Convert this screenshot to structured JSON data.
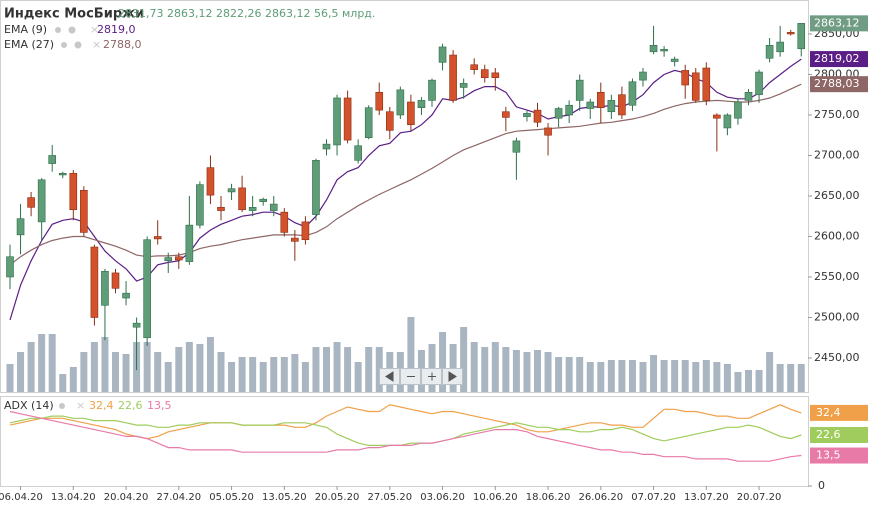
{
  "chart_data": [
    {
      "type": "candlestick",
      "title": "Индекс МосБиржи",
      "header": {
        "open": {
          "value": 2831.73,
          "label": "2831,73"
        },
        "high": {
          "value": 2863.12,
          "label": "2863,12"
        },
        "low": {
          "value": 2822.26,
          "label": "2822,26"
        },
        "close": {
          "value": 2863.12,
          "label": "2863,12"
        },
        "turnover": {
          "value": 56.5,
          "label": "56,5 млрд."
        }
      },
      "categories": [
        null,
        "06.04.20",
        null,
        null,
        null,
        null,
        "13.04.20",
        null,
        null,
        null,
        null,
        "20.04.20",
        null,
        null,
        null,
        null,
        "27.04.20",
        null,
        null,
        null,
        null,
        "05.05.20",
        null,
        null,
        null,
        null,
        "13.05.20",
        null,
        null,
        null,
        null,
        "20.05.20",
        null,
        null,
        null,
        null,
        "27.05.20",
        null,
        null,
        null,
        null,
        "03.06.20",
        null,
        null,
        null,
        null,
        "10.06.20",
        null,
        null,
        null,
        null,
        "18.06.20",
        null,
        null,
        null,
        null,
        "26.06.20",
        null,
        null,
        null,
        null,
        "07.07.20",
        null,
        null,
        null,
        null,
        "13.07.20",
        null,
        null,
        null,
        null,
        "20.07.20",
        null,
        null,
        null,
        null
      ],
      "open": [
        2550,
        2602,
        2648,
        2618,
        2690,
        2676,
        2678,
        2657,
        2587,
        2515,
        2555,
        2524,
        2488,
        2475,
        2600,
        2570,
        2575,
        2569,
        2614,
        2685,
        2636,
        2655,
        2660,
        2632,
        2643,
        2632,
        2630,
        2598,
        2618,
        2627,
        2708,
        2713,
        2771,
        2694,
        2722,
        2778,
        2754,
        2750,
        2766,
        2759,
        2768,
        2815,
        2824,
        2784,
        2812,
        2806,
        2802,
        2754,
        2704,
        2748,
        2756,
        2734,
        2746,
        2750,
        2768,
        2758,
        2778,
        2754,
        2775,
        2762,
        2793,
        2828,
        2829,
        2816,
        2805,
        2802,
        2808,
        2750,
        2734,
        2746,
        2768,
        2775,
        2820,
        2828,
        2852,
        2831.73
      ],
      "high": [
        2590,
        2640,
        2655,
        2672,
        2713,
        2680,
        2682,
        2662,
        2590,
        2560,
        2560,
        2545,
        2500,
        2600,
        2620,
        2580,
        2580,
        2650,
        2668,
        2700,
        2650,
        2665,
        2675,
        2650,
        2648,
        2650,
        2635,
        2608,
        2625,
        2696,
        2720,
        2775,
        2780,
        2720,
        2762,
        2790,
        2760,
        2785,
        2775,
        2772,
        2795,
        2838,
        2830,
        2795,
        2820,
        2812,
        2808,
        2760,
        2722,
        2755,
        2765,
        2740,
        2760,
        2768,
        2800,
        2770,
        2790,
        2775,
        2785,
        2795,
        2808,
        2860,
        2835,
        2822,
        2812,
        2808,
        2815,
        2752,
        2752,
        2770,
        2782,
        2806,
        2845,
        2860,
        2855,
        2863.12
      ],
      "low": [
        2535,
        2578,
        2625,
        2595,
        2680,
        2672,
        2620,
        2600,
        2490,
        2472,
        2530,
        2515,
        2435,
        2465,
        2590,
        2555,
        2560,
        2565,
        2610,
        2640,
        2620,
        2645,
        2630,
        2625,
        2638,
        2625,
        2600,
        2570,
        2590,
        2620,
        2700,
        2700,
        2715,
        2690,
        2720,
        2750,
        2720,
        2745,
        2730,
        2750,
        2760,
        2805,
        2765,
        2770,
        2800,
        2790,
        2780,
        2730,
        2670,
        2742,
        2735,
        2700,
        2735,
        2740,
        2755,
        2745,
        2740,
        2745,
        2745,
        2755,
        2785,
        2825,
        2822,
        2810,
        2770,
        2765,
        2762,
        2705,
        2725,
        2738,
        2762,
        2765,
        2815,
        2822,
        2848,
        2822.26
      ],
      "close": [
        2575,
        2622,
        2636,
        2670,
        2700,
        2678,
        2633,
        2605,
        2500,
        2557,
        2536,
        2530,
        2493,
        2596,
        2597,
        2574,
        2571,
        2614,
        2664,
        2651,
        2632,
        2659,
        2633,
        2636,
        2646,
        2640,
        2605,
        2594,
        2596,
        2694,
        2714,
        2771,
        2719,
        2712,
        2759,
        2756,
        2731,
        2781,
        2738,
        2768,
        2793,
        2834,
        2768,
        2789,
        2806,
        2796,
        2796,
        2747,
        2718,
        2752,
        2741,
        2725,
        2758,
        2762,
        2793,
        2766,
        2759,
        2768,
        2750,
        2791,
        2803,
        2836,
        2831,
        2819,
        2787,
        2768,
        2768,
        2746,
        2750,
        2766,
        2778,
        2803,
        2836,
        2840,
        2850,
        2863.12
      ],
      "up_color": "#5e9d77",
      "down_color": "#d3522c",
      "volume": [
        28,
        40,
        50,
        58,
        58,
        18,
        25,
        40,
        50,
        55,
        40,
        38,
        50,
        50,
        40,
        30,
        45,
        50,
        48,
        55,
        40,
        30,
        35,
        35,
        30,
        35,
        35,
        38,
        30,
        45,
        45,
        50,
        45,
        30,
        45,
        45,
        40,
        40,
        75,
        42,
        48,
        60,
        48,
        65,
        50,
        45,
        50,
        45,
        42,
        40,
        42,
        40,
        35,
        35,
        35,
        30,
        30,
        32,
        32,
        32,
        30,
        37,
        32,
        32,
        32,
        30,
        32,
        30,
        28,
        20,
        22,
        22,
        40,
        28,
        28,
        28
      ],
      "volume_color": "#a9b6c2",
      "volume_ylim": [
        0,
        100
      ],
      "series": [
        {
          "name": "EMA (9)",
          "color": "#5b1e86",
          "header_value": {
            "value": 2819.0,
            "label": "2819,0"
          },
          "current": {
            "value": 2819.02,
            "label": "2819,02"
          },
          "values": [
            2497,
            2540,
            2570,
            2595,
            2615,
            2620,
            2622,
            2618,
            2600,
            2582,
            2570,
            2560,
            2545,
            2550,
            2565,
            2568,
            2570,
            2580,
            2598,
            2608,
            2615,
            2620,
            2625,
            2627,
            2630,
            2630,
            2625,
            2617,
            2612,
            2625,
            2645,
            2670,
            2680,
            2685,
            2700,
            2712,
            2715,
            2728,
            2730,
            2738,
            2750,
            2770,
            2768,
            2772,
            2780,
            2785,
            2785,
            2778,
            2760,
            2756,
            2752,
            2745,
            2748,
            2750,
            2758,
            2760,
            2760,
            2762,
            2760,
            2766,
            2775,
            2790,
            2800,
            2805,
            2802,
            2795,
            2790,
            2778,
            2772,
            2770,
            2770,
            2777,
            2790,
            2800,
            2810,
            2819.02
          ]
        },
        {
          "name": "EMA (27)",
          "color": "#8f6666",
          "header_value": {
            "value": 2788.0,
            "label": "2788,0"
          },
          "current": {
            "value": 2788.03,
            "label": "2788,03"
          },
          "values": [
            2565,
            2575,
            2583,
            2590,
            2595,
            2598,
            2600,
            2600,
            2596,
            2592,
            2588,
            2583,
            2577,
            2575,
            2576,
            2576,
            2577,
            2580,
            2585,
            2588,
            2590,
            2593,
            2596,
            2598,
            2600,
            2602,
            2602,
            2602,
            2601,
            2605,
            2612,
            2622,
            2630,
            2638,
            2645,
            2652,
            2658,
            2664,
            2670,
            2677,
            2684,
            2692,
            2700,
            2707,
            2712,
            2717,
            2722,
            2727,
            2730,
            2731,
            2732,
            2733,
            2734,
            2735,
            2736,
            2738,
            2740,
            2741,
            2743,
            2745,
            2748,
            2752,
            2757,
            2761,
            2764,
            2766,
            2767,
            2768,
            2767,
            2766,
            2766,
            2768,
            2771,
            2776,
            2782,
            2788.03
          ]
        }
      ],
      "last_color": "#6f9c82",
      "ylim": [
        2408,
        2887
      ],
      "yticks": [
        {
          "value": 2450,
          "label": "2450,00"
        },
        {
          "value": 2500,
          "label": "2500,00"
        },
        {
          "value": 2550,
          "label": "2550,00"
        },
        {
          "value": 2600,
          "label": "2600,00"
        },
        {
          "value": 2650,
          "label": "2650,00"
        },
        {
          "value": 2700,
          "label": "2700,00"
        },
        {
          "value": 2750,
          "label": "2750,00"
        },
        {
          "value": 2800,
          "label": "2800,00"
        },
        {
          "value": 2850,
          "label": "2850,00"
        }
      ]
    },
    {
      "type": "line",
      "title": "ADX (14)",
      "series": [
        {
          "color": "#f0a048",
          "current": {
            "value": 32.4,
            "label": "32,4"
          },
          "values": [
            27,
            28,
            29,
            30,
            30,
            30,
            29,
            28,
            27,
            26,
            25,
            23,
            22,
            21,
            22,
            24,
            25,
            26,
            27,
            28,
            28,
            28,
            27,
            27,
            27,
            27,
            27,
            26,
            26,
            28,
            31,
            33,
            35,
            34,
            33,
            33,
            36,
            35,
            34,
            33,
            32,
            33,
            33,
            32,
            31,
            30,
            29,
            28,
            27,
            25,
            24,
            24,
            25,
            26,
            27,
            28,
            28,
            27,
            27,
            26,
            26,
            30,
            34,
            34,
            33,
            33,
            32,
            31,
            31,
            30,
            30,
            32,
            34,
            36,
            34,
            32.4
          ]
        },
        {
          "color": "#9fcc5c",
          "current": {
            "value": 22.6,
            "label": "22,6"
          },
          "values": [
            28,
            29,
            30,
            30,
            31,
            31,
            30,
            30,
            29,
            29,
            29,
            28,
            27,
            27,
            26,
            26,
            27,
            27,
            28,
            28,
            28,
            28,
            27,
            27,
            27,
            27,
            28,
            28,
            28,
            27,
            26,
            23,
            21,
            19,
            18,
            18,
            18,
            18,
            19,
            19,
            19,
            20,
            21,
            23,
            24,
            25,
            26,
            27,
            28,
            27,
            26,
            26,
            25,
            25,
            24,
            24,
            25,
            25,
            26,
            25,
            23,
            21,
            20,
            21,
            22,
            23,
            24,
            25,
            26,
            26,
            27,
            26,
            24,
            22,
            21,
            22.6
          ]
        },
        {
          "color": "#e87aa8",
          "current": {
            "value": 13.5,
            "label": "13,5"
          },
          "values": [
            33,
            32,
            31,
            30,
            29,
            28,
            27,
            26,
            25,
            24,
            23,
            22,
            22,
            21,
            19,
            17,
            17,
            16,
            16,
            16,
            16,
            16,
            15,
            15,
            15,
            15,
            15,
            15,
            15,
            15,
            15,
            16,
            16,
            16,
            17,
            17,
            18,
            18,
            18,
            19,
            19,
            20,
            21,
            22,
            23,
            24,
            25,
            25,
            25,
            24,
            22,
            21,
            20,
            19,
            18,
            17,
            16,
            16,
            15,
            15,
            14,
            14,
            13,
            13,
            13,
            12,
            12,
            12,
            12,
            11,
            11,
            11,
            11,
            12,
            13,
            13.5
          ]
        }
      ],
      "ylim": [
        0,
        39
      ],
      "yticks": [
        0
      ]
    }
  ]
}
